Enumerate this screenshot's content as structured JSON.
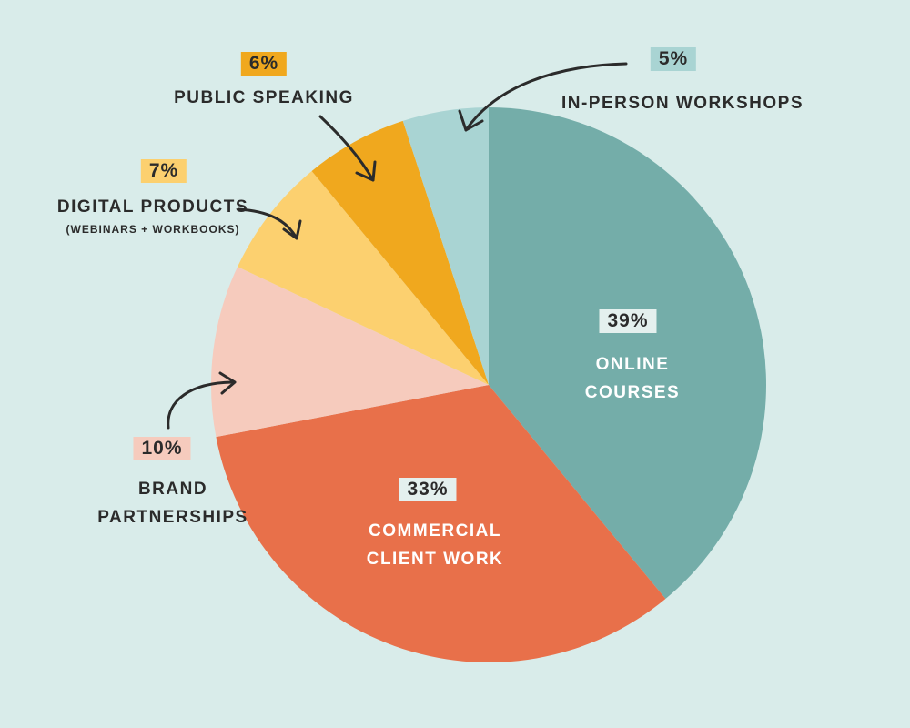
{
  "chart_data": {
    "type": "pie",
    "categories": [
      "ONLINE COURSES",
      "COMMERCIAL CLIENT WORK",
      "BRAND PARTNERSHIPS",
      "DIGITAL PRODUCTS",
      "PUBLIC SPEAKING",
      "IN-PERSON WORKSHOPS"
    ],
    "values": [
      39,
      33,
      10,
      7,
      6,
      5
    ],
    "value_labels": [
      "39%",
      "33%",
      "10%",
      "7%",
      "6%",
      "5%"
    ],
    "colors": [
      "#74ada9",
      "#e8704a",
      "#f6cbbd",
      "#fcd06f",
      "#f0a81e",
      "#a9d4d3"
    ],
    "annotation": "(WEBINARS + WORKBOOKS)"
  }
}
